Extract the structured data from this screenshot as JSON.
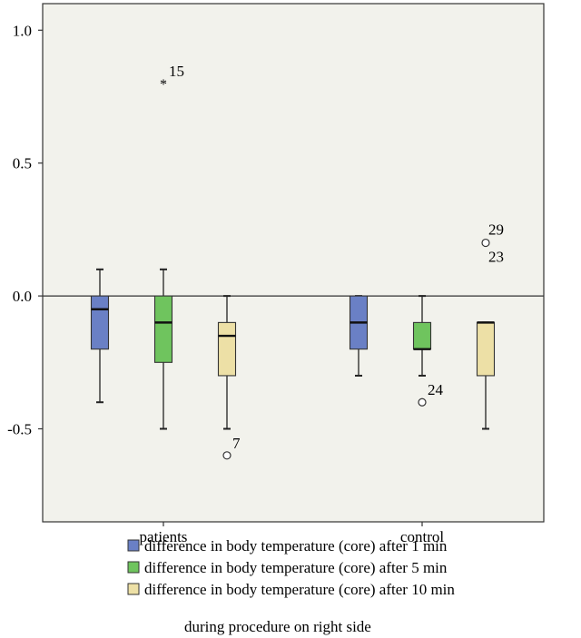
{
  "chart_data": {
    "type": "boxplot",
    "title": "",
    "xlabel": "",
    "ylabel": "",
    "ylim": [
      -0.85,
      1.1
    ],
    "y_ticks": [
      {
        "value": 1.0,
        "label": "1.0"
      },
      {
        "value": 0.5,
        "label": "0.5"
      },
      {
        "value": 0.0,
        "label": "0.0"
      },
      {
        "value": -0.5,
        "label": "-0.5"
      }
    ],
    "reference_line": 0.0,
    "background": "#f2f2ec",
    "categories": [
      "patients",
      "control"
    ],
    "series": [
      {
        "name": "difference in body temperature (core) after 1 min",
        "color": "#6a80c5",
        "boxes": [
          {
            "category": "patients",
            "whisker_low": -0.4,
            "q1": -0.2,
            "median": -0.05,
            "q3": 0.0,
            "whisker_high": 0.1
          },
          {
            "category": "control",
            "whisker_low": -0.3,
            "q1": -0.2,
            "median": -0.1,
            "q3": 0.0,
            "whisker_high": 0.0
          }
        ],
        "outliers": []
      },
      {
        "name": "difference in body temperature (core) after 5 min",
        "color": "#6fc45e",
        "boxes": [
          {
            "category": "patients",
            "whisker_low": -0.5,
            "q1": -0.25,
            "median": -0.1,
            "q3": 0.0,
            "whisker_high": 0.1
          },
          {
            "category": "control",
            "whisker_low": -0.3,
            "q1": -0.2,
            "median": -0.2,
            "q3": -0.1,
            "whisker_high": 0.0
          }
        ],
        "outliers": [
          {
            "category": "patients",
            "value": 0.8,
            "marker": "star",
            "label": "15"
          },
          {
            "category": "control",
            "value": -0.4,
            "marker": "circle",
            "label": "24"
          }
        ]
      },
      {
        "name": "difference in body temperature (core) after 10 min",
        "color": "#ede0a6",
        "boxes": [
          {
            "category": "patients",
            "whisker_low": -0.5,
            "q1": -0.3,
            "median": -0.15,
            "q3": -0.1,
            "whisker_high": 0.0
          },
          {
            "category": "control",
            "whisker_low": -0.5,
            "q1": -0.3,
            "median": -0.1,
            "q3": -0.1,
            "whisker_high": -0.1
          }
        ],
        "outliers": [
          {
            "category": "patients",
            "value": -0.6,
            "marker": "circle",
            "label": "7"
          },
          {
            "category": "control",
            "value": 0.2,
            "marker": "circle",
            "label": "29",
            "label2": "23"
          }
        ]
      }
    ],
    "legend": {
      "position": "bottom",
      "title": "during procedure on right side"
    }
  }
}
